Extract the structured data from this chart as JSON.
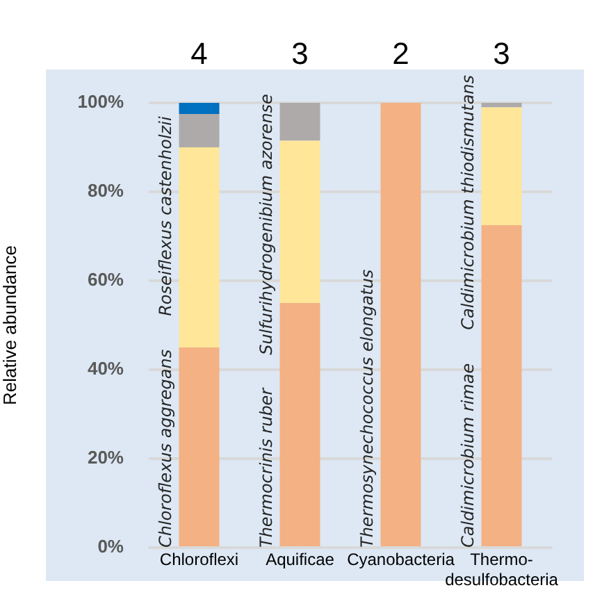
{
  "chart_data": {
    "type": "bar",
    "stacked": true,
    "ylabel": "Relative abundance",
    "categories": [
      "Chloroflexi",
      "Aquificae",
      "Cyanobacteria",
      "Thermo-desulfobacteria"
    ],
    "series": [
      {
        "color": "#f4b183",
        "values": [
          45,
          55,
          100,
          72.5
        ]
      },
      {
        "color": "#ffe699",
        "values": [
          45,
          36.5,
          null,
          26.5
        ]
      },
      {
        "color": "#aeaaaa",
        "values": [
          7.5,
          8.5,
          null,
          1
        ]
      },
      {
        "color": "#0070c0",
        "values": [
          2.5,
          null,
          null,
          null
        ]
      }
    ],
    "ylim": [
      0,
      100
    ],
    "yticks": [
      {
        "value": 0,
        "label": "0%"
      },
      {
        "value": 20,
        "label": "20%"
      },
      {
        "value": 40,
        "label": "40%"
      },
      {
        "value": 60,
        "label": "60%"
      },
      {
        "value": 80,
        "label": "80%"
      },
      {
        "value": 100,
        "label": "100%"
      }
    ],
    "grid": "y",
    "legend": false,
    "annotations": [
      "4",
      "3",
      "2",
      "3",
      "Chloroflexus aggregans",
      "Roseiflexus castenholzii",
      "Thermocrinis ruber",
      "Sulfurihydrogenibium azorense",
      "Thermosynechococcus elongatus",
      "Caldimicrobium rimae",
      "Caldimicrobium thiodismutans"
    ]
  }
}
